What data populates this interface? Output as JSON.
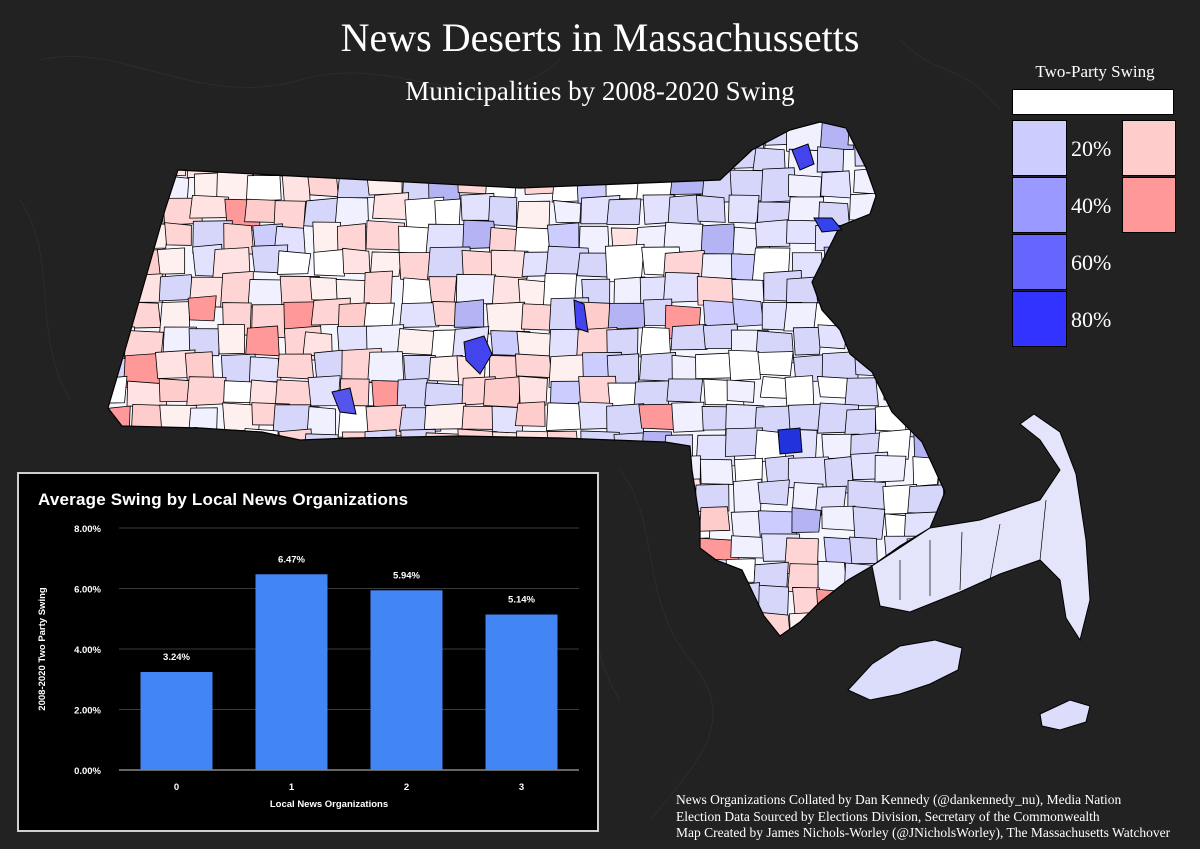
{
  "title": "News Deserts in Massachussetts",
  "subtitle": "Municipalities by 2008-2020 Swing",
  "legend": {
    "title": "Two-Party Swing",
    "labels": [
      "20%",
      "40%",
      "60%",
      "80%"
    ],
    "colors": {
      "blue": [
        "#ccccff",
        "#9999ff",
        "#6666ff",
        "#3333ff"
      ],
      "red": [
        "#ffcccc",
        "#ff9999"
      ],
      "neutral": "#ffffff"
    }
  },
  "credits": {
    "line1": "News Organizations Collated by Dan Kennedy (@dankennedy_nu), Media Nation",
    "line2": "Election Data Sourced by Elections Division, Secretary of the Commonwealth",
    "line3": "Map Created by James Nichols-Worley (@JNicholsWorley), The Massachusetts Watchover"
  },
  "chart_data": {
    "type": "bar",
    "title": "Average Swing by Local News Organizations",
    "xlabel": "Local News Organizations",
    "ylabel": "2008-2020 Two Party Swing",
    "categories": [
      "0",
      "1",
      "2",
      "3"
    ],
    "values": [
      3.24,
      6.47,
      5.94,
      5.14
    ],
    "value_labels": [
      "3.24%",
      "6.47%",
      "5.94%",
      "5.14%"
    ],
    "yticks": [
      "0.00%",
      "2.00%",
      "4.00%",
      "6.00%",
      "8.00%"
    ],
    "ylim": [
      0,
      8
    ],
    "bar_color": "#4285f4",
    "grid": true
  }
}
